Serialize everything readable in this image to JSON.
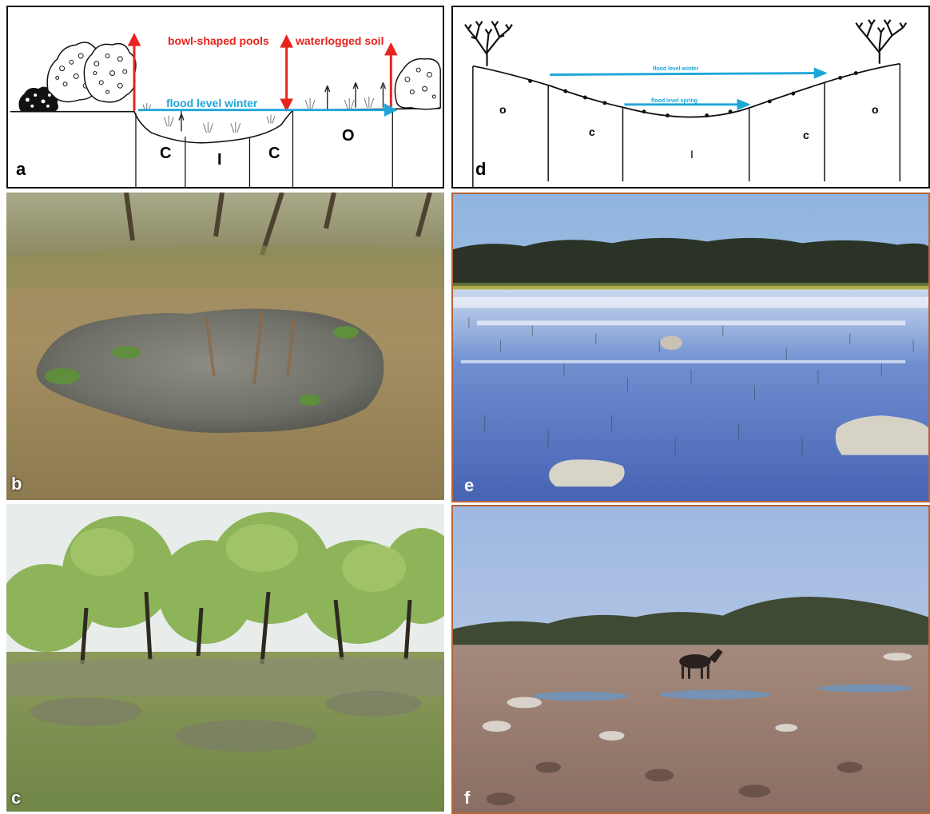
{
  "panels": {
    "a": {
      "label": "a",
      "annotations": {
        "bowl": "bowl-shaped pools",
        "waterlogged": "waterlogged soil",
        "flood_winter": "flood level winter"
      },
      "zones": {
        "c1": "C",
        "i": "I",
        "c2": "C",
        "o": "O"
      },
      "colors": {
        "annotation": "#e8231c",
        "flood": "#1fa6d9",
        "line": "#111111"
      }
    },
    "b": {
      "label": "b"
    },
    "c": {
      "label": "c"
    },
    "d": {
      "label": "d",
      "annotations": {
        "flood_winter": "flood level winter",
        "flood_spring": "flood level spring"
      },
      "zones": {
        "o1": "o",
        "c1": "c",
        "i": "I",
        "c2": "c",
        "o2": "o"
      }
    },
    "e": {
      "label": "e"
    },
    "f": {
      "label": "f"
    }
  }
}
